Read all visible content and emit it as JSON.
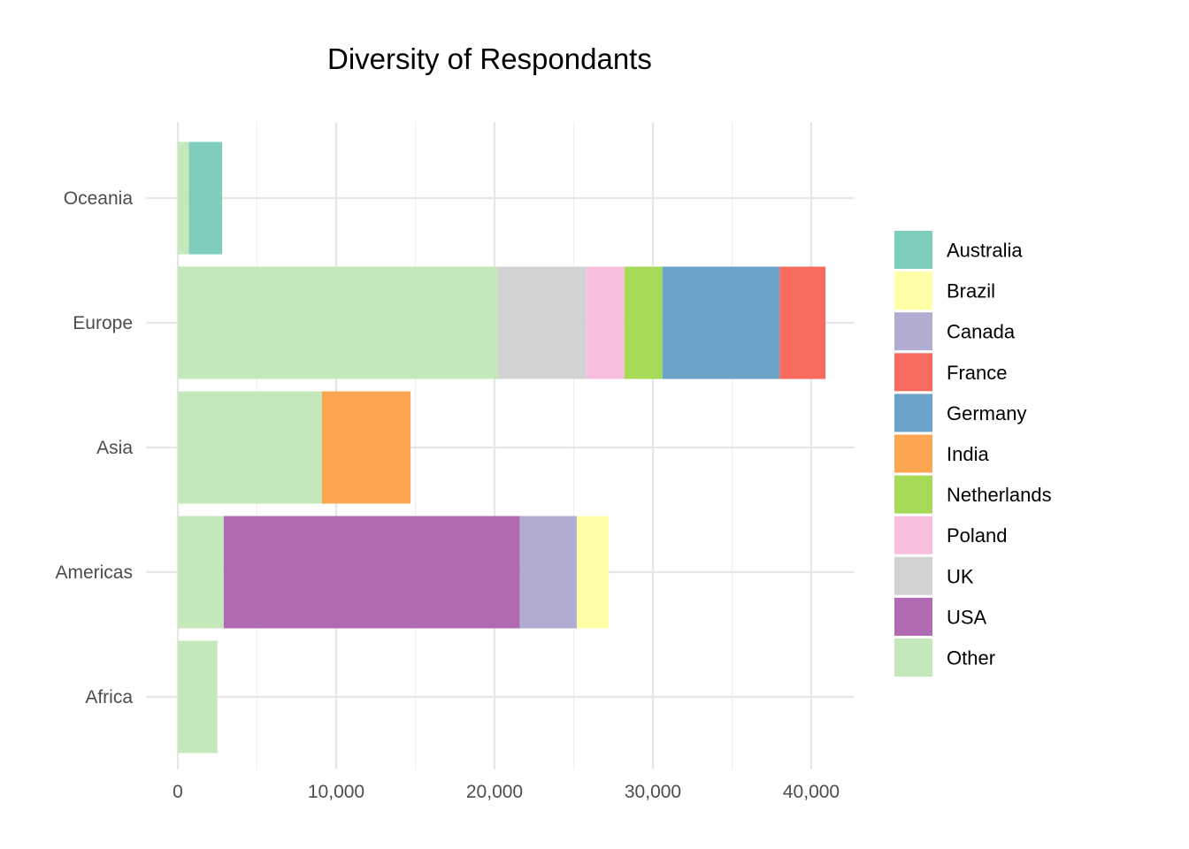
{
  "chart_data": {
    "type": "bar",
    "orientation": "horizontal",
    "stacked": true,
    "title": "Diversity of Respondants",
    "xlabel": "",
    "ylabel": "",
    "xlim": [
      0,
      43000
    ],
    "x_ticks": [
      0,
      10000,
      20000,
      30000,
      40000
    ],
    "x_tick_labels": [
      "0",
      "10,000",
      "20,000",
      "30,000",
      "40,000"
    ],
    "categories": [
      "Africa",
      "Americas",
      "Asia",
      "Europe",
      "Oceania"
    ],
    "stack_order": [
      "Other",
      "USA",
      "UK",
      "Poland",
      "Netherlands",
      "India",
      "Germany",
      "France",
      "Canada",
      "Brazil",
      "Australia"
    ],
    "series": [
      {
        "name": "Australia",
        "color": "#7fcdbb",
        "values": [
          0,
          0,
          0,
          0,
          2100
        ]
      },
      {
        "name": "Brazil",
        "color": "#ffffa8",
        "values": [
          0,
          2000,
          0,
          0,
          0
        ]
      },
      {
        "name": "Canada",
        "color": "#b1acd1",
        "values": [
          0,
          3600,
          0,
          0,
          0
        ]
      },
      {
        "name": "France",
        "color": "#f76b61",
        "values": [
          0,
          0,
          0,
          2900,
          0
        ]
      },
      {
        "name": "Germany",
        "color": "#6ba3c9",
        "values": [
          0,
          0,
          0,
          7400,
          0
        ]
      },
      {
        "name": "India",
        "color": "#fca652",
        "values": [
          0,
          0,
          5600,
          0,
          0
        ]
      },
      {
        "name": "Netherlands",
        "color": "#a6da57",
        "values": [
          0,
          0,
          0,
          2400,
          0
        ]
      },
      {
        "name": "Poland",
        "color": "#f8c0de",
        "values": [
          0,
          0,
          0,
          2400,
          0
        ]
      },
      {
        "name": "UK",
        "color": "#d2d2d2",
        "values": [
          0,
          0,
          0,
          5600,
          0
        ]
      },
      {
        "name": "USA",
        "color": "#af6ab1",
        "values": [
          0,
          18700,
          0,
          0,
          0
        ]
      },
      {
        "name": "Other",
        "color": "#c4e8ba",
        "values": [
          2500,
          2900,
          9100,
          20200,
          700
        ]
      }
    ],
    "legend_position": "right",
    "grid": true
  }
}
